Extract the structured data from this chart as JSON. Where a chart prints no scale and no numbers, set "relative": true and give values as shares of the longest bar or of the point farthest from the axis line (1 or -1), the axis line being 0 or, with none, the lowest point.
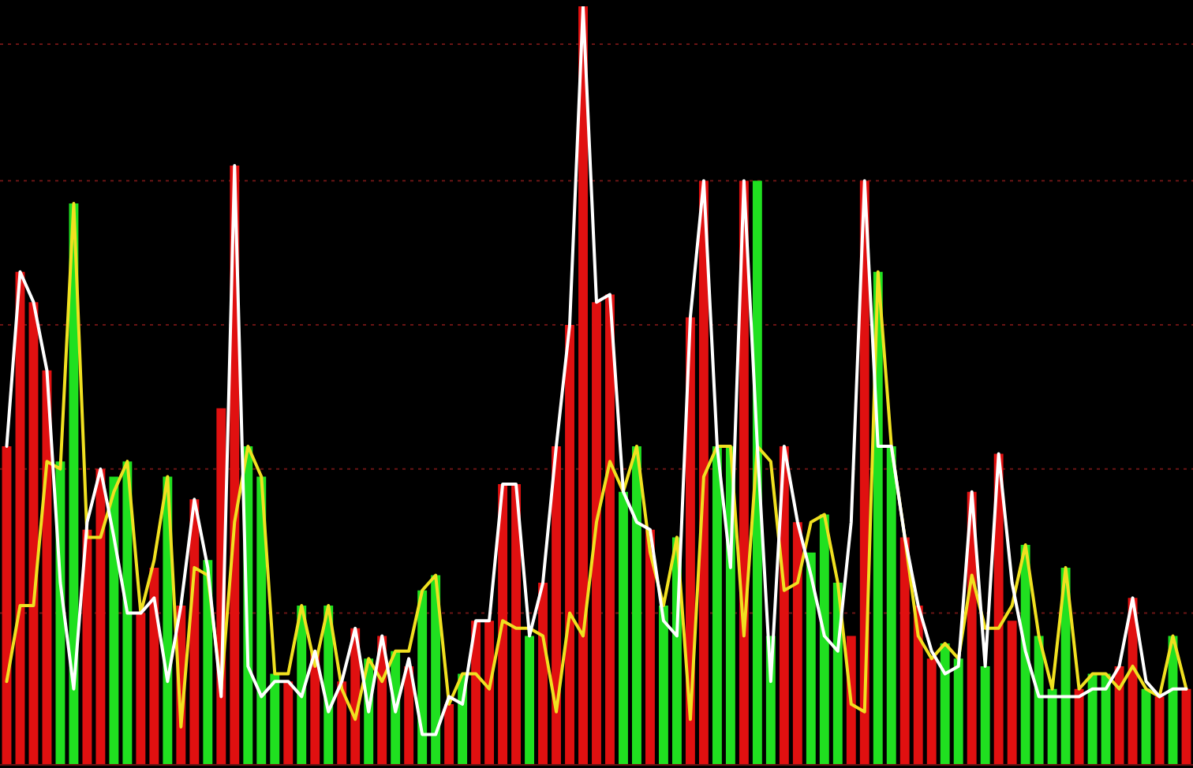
{
  "chart_data": [
    {
      "type": "bar",
      "relative": true,
      "legend": false,
      "ref_lines": [
        {
          "axis": "y",
          "value": 0.2,
          "color": "#6a1414",
          "line_style": "dotted"
        },
        {
          "axis": "y",
          "value": 0.39,
          "color": "#6a1414",
          "line_style": "dotted"
        },
        {
          "axis": "y",
          "value": 0.58,
          "color": "#6a1414",
          "line_style": "dotted"
        },
        {
          "axis": "y",
          "value": 0.77,
          "color": "#6a1414",
          "line_style": "dotted"
        },
        {
          "axis": "y",
          "value": 0.95,
          "color": "#6a1414",
          "line_style": "dotted"
        }
      ],
      "categories": [
        null,
        null,
        null,
        null,
        null,
        null,
        null,
        null,
        null,
        null,
        null,
        null,
        null,
        null,
        null,
        null,
        null,
        null,
        null,
        null,
        null,
        null,
        null,
        null,
        null,
        null,
        null,
        null,
        null,
        null,
        null,
        null,
        null,
        null,
        null,
        null,
        null,
        null,
        null,
        null,
        null,
        null,
        null,
        null,
        null,
        null,
        null,
        null,
        null,
        null,
        null,
        null,
        null,
        null,
        null,
        null,
        null,
        null,
        null,
        null,
        null,
        null,
        null,
        null,
        null,
        null,
        null,
        null,
        null,
        null,
        null,
        null,
        null,
        null,
        null,
        null,
        null,
        null,
        null,
        null,
        null,
        null,
        null,
        null,
        null,
        null,
        null,
        null,
        null
      ],
      "colors": [
        "#e01010",
        "#e01010",
        "#e01010",
        "#e01010",
        "#20e020",
        "#20e020",
        "#e01010",
        "#e01010",
        "#20e020",
        "#20e020",
        "#e01010",
        "#e01010",
        "#20e020",
        "#e01010",
        "#e01010",
        "#20e020",
        "#e01010",
        "#e01010",
        "#20e020",
        "#20e020",
        "#20e020",
        "#e01010",
        "#20e020",
        "#e01010",
        "#20e020",
        "#e01010",
        "#e01010",
        "#20e020",
        "#e01010",
        "#20e020",
        "#e01010",
        "#20e020",
        "#20e020",
        "#e01010",
        "#20e020",
        "#e01010",
        "#e01010",
        "#e01010",
        "#e01010",
        "#20e020",
        "#e01010",
        "#e01010",
        "#e01010",
        "#e01010",
        "#e01010",
        "#e01010",
        "#20e020",
        "#20e020",
        "#e01010",
        "#20e020",
        "#20e020",
        "#e01010",
        "#e01010",
        "#20e020",
        "#20e020",
        "#e01010",
        "#20e020",
        "#20e020",
        "#e01010",
        "#e01010",
        "#20e020",
        "#20e020",
        "#20e020",
        "#e01010",
        "#e01010",
        "#20e020",
        "#20e020",
        "#e01010",
        "#e01010",
        "#e01010",
        "#20e020",
        "#20e020",
        "#e01010",
        "#20e020",
        "#e01010",
        "#e01010",
        "#20e020",
        "#20e020",
        "#20e020",
        "#20e020",
        "#e01010",
        "#20e020",
        "#20e020",
        "#e01010",
        "#e01010",
        "#20e020",
        "#e01010",
        "#20e020",
        "#e01010"
      ],
      "values": [
        0.42,
        0.65,
        0.61,
        0.52,
        0.4,
        0.74,
        0.31,
        0.39,
        0.38,
        0.4,
        0.2,
        0.26,
        0.38,
        0.21,
        0.35,
        0.27,
        0.47,
        0.79,
        0.42,
        0.38,
        0.12,
        0.11,
        0.21,
        0.15,
        0.21,
        0.11,
        0.18,
        0.14,
        0.17,
        0.15,
        0.13,
        0.23,
        0.25,
        0.08,
        0.12,
        0.19,
        0.19,
        0.37,
        0.37,
        0.17,
        0.24,
        0.42,
        0.58,
        1,
        0.61,
        0.62,
        0.36,
        0.42,
        0.31,
        0.21,
        0.3,
        0.59,
        0.77,
        0.42,
        0.42,
        0.77,
        0.77,
        0.17,
        0.42,
        0.32,
        0.28,
        0.33,
        0.24,
        0.17,
        0.77,
        0.65,
        0.42,
        0.3,
        0.21,
        0.14,
        0.16,
        0.14,
        0.36,
        0.13,
        0.41,
        0.19,
        0.29,
        0.17,
        0.1,
        0.26,
        0.1,
        0.12,
        0.12,
        0.13,
        0.22,
        0.1,
        0.09,
        0.17,
        0.1
      ]
    },
    {
      "type": "line",
      "relative": true,
      "legend": false,
      "marker": "none",
      "line_style": "solid",
      "categories": [
        null,
        null,
        null,
        null,
        null,
        null,
        null,
        null,
        null,
        null,
        null,
        null,
        null,
        null,
        null,
        null,
        null,
        null,
        null,
        null,
        null,
        null,
        null,
        null,
        null,
        null,
        null,
        null,
        null,
        null,
        null,
        null,
        null,
        null,
        null,
        null,
        null,
        null,
        null,
        null,
        null,
        null,
        null,
        null,
        null,
        null,
        null,
        null,
        null,
        null,
        null,
        null,
        null,
        null,
        null,
        null,
        null,
        null,
        null,
        null,
        null,
        null,
        null,
        null,
        null,
        null,
        null,
        null,
        null,
        null,
        null,
        null,
        null,
        null,
        null,
        null,
        null,
        null,
        null,
        null,
        null,
        null,
        null,
        null,
        null,
        null,
        null,
        null,
        null
      ],
      "series": [
        {
          "color": "#ffffff",
          "values": [
            0.42,
            0.65,
            0.61,
            0.52,
            0.24,
            0.1,
            0.32,
            0.39,
            0.3,
            0.2,
            0.2,
            0.22,
            0.11,
            0.21,
            0.35,
            0.26,
            0.09,
            0.79,
            0.13,
            0.09,
            0.11,
            0.11,
            0.09,
            0.15,
            0.07,
            0.11,
            0.18,
            0.07,
            0.17,
            0.07,
            0.14,
            0.04,
            0.04,
            0.09,
            0.08,
            0.19,
            0.19,
            0.37,
            0.37,
            0.17,
            0.24,
            0.42,
            0.58,
            1,
            0.61,
            0.62,
            0.36,
            0.32,
            0.31,
            0.19,
            0.17,
            0.59,
            0.77,
            0.42,
            0.26,
            0.77,
            0.42,
            0.11,
            0.42,
            0.32,
            0.25,
            0.17,
            0.15,
            0.32,
            0.77,
            0.42,
            0.42,
            0.3,
            0.21,
            0.15,
            0.12,
            0.13,
            0.36,
            0.13,
            0.41,
            0.24,
            0.15,
            0.09,
            0.09,
            0.09,
            0.09,
            0.1,
            0.1,
            0.13,
            0.22,
            0.11,
            0.09,
            0.1,
            0.1
          ]
        },
        {
          "color": "#f0e020",
          "values": [
            0.11,
            0.21,
            0.21,
            0.4,
            0.39,
            0.74,
            0.3,
            0.3,
            0.36,
            0.4,
            0.2,
            0.27,
            0.38,
            0.05,
            0.26,
            0.25,
            0.1,
            0.32,
            0.42,
            0.38,
            0.12,
            0.12,
            0.21,
            0.13,
            0.21,
            0.1,
            0.06,
            0.14,
            0.11,
            0.15,
            0.15,
            0.23,
            0.25,
            0.08,
            0.12,
            0.12,
            0.1,
            0.19,
            0.18,
            0.18,
            0.17,
            0.07,
            0.2,
            0.17,
            0.32,
            0.4,
            0.36,
            0.42,
            0.28,
            0.21,
            0.3,
            0.06,
            0.38,
            0.42,
            0.42,
            0.17,
            0.42,
            0.4,
            0.23,
            0.24,
            0.32,
            0.33,
            0.24,
            0.08,
            0.07,
            0.65,
            0.42,
            0.3,
            0.17,
            0.14,
            0.16,
            0.14,
            0.25,
            0.18,
            0.18,
            0.21,
            0.29,
            0.17,
            0.1,
            0.26,
            0.1,
            0.12,
            0.12,
            0.1,
            0.13,
            0.1,
            0.09,
            0.17,
            0.1
          ]
        }
      ]
    }
  ]
}
